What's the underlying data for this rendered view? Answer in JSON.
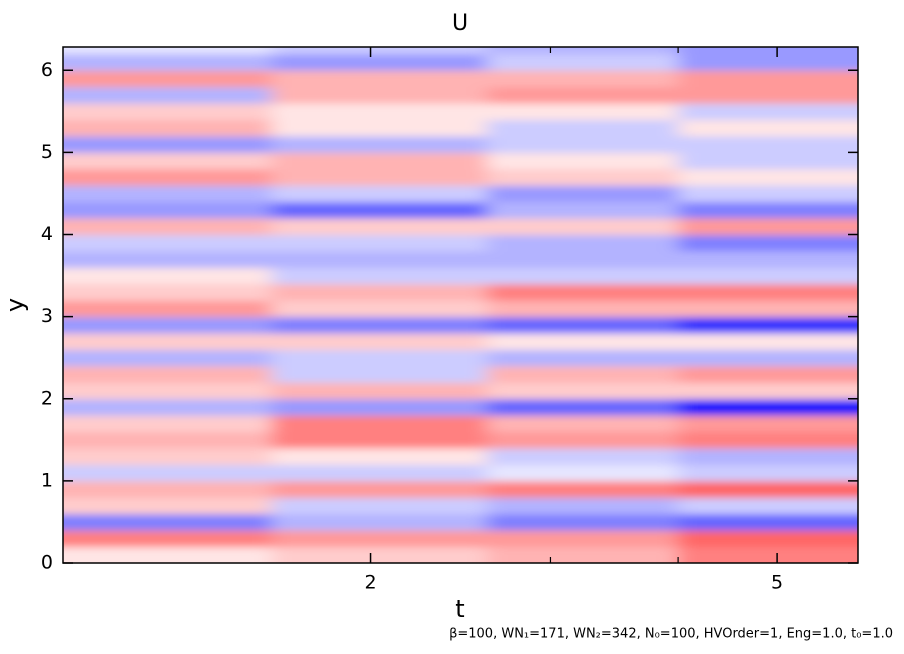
{
  "chart_data": {
    "type": "heatmap",
    "title": "U",
    "x_label": "t",
    "y_label": "y",
    "note": "β=100, WN₁=171, WN₂=342, N₀=100, HVOrder=1, Eng=1.0, t₀=1.0",
    "xscale": "log",
    "xlim": [
      1,
      6
    ],
    "xticks": [
      2,
      5
    ],
    "xminorticks": [
      3,
      4
    ],
    "ylim": [
      0,
      6.2832
    ],
    "yticks": [
      0,
      1,
      2,
      3,
      4,
      5,
      6
    ],
    "zlim": [
      -1,
      1
    ],
    "colormap": [
      "#0000ff",
      "#ffffff",
      "#ff0000"
    ],
    "xbins": [
      1,
      1.6,
      2.6,
      4,
      6
    ],
    "ybins": [
      0,
      0.2,
      0.4,
      0.6,
      0.8,
      1.0,
      1.2,
      1.4,
      1.6,
      1.8,
      2.0,
      2.2,
      2.4,
      2.6,
      2.8,
      3.0,
      3.2,
      3.4,
      3.6,
      3.8,
      4.0,
      4.2,
      4.4,
      4.6,
      4.8,
      5.0,
      5.2,
      5.4,
      5.6,
      5.8,
      6.0,
      6.2,
      6.2832
    ],
    "values": [
      [
        0.1,
        0.2,
        0.3,
        0.5
      ],
      [
        0.5,
        0.4,
        0.4,
        0.6
      ],
      [
        -0.5,
        -0.3,
        -0.5,
        -0.6
      ],
      [
        0.2,
        -0.2,
        -0.3,
        -0.2
      ],
      [
        0.3,
        0.4,
        0.5,
        0.6
      ],
      [
        -0.2,
        -0.2,
        -0.1,
        -0.2
      ],
      [
        0.2,
        0.1,
        -0.2,
        -0.3
      ],
      [
        0.3,
        0.5,
        0.4,
        0.5
      ],
      [
        0.2,
        0.5,
        0.3,
        0.4
      ],
      [
        -0.3,
        -0.4,
        -0.6,
        -0.9
      ],
      [
        0.2,
        0.3,
        0.2,
        0.2
      ],
      [
        0.3,
        -0.2,
        0.3,
        0.4
      ],
      [
        -0.3,
        -0.2,
        -0.3,
        -0.3
      ],
      [
        0.2,
        0.2,
        0.1,
        0.1
      ],
      [
        -0.4,
        -0.5,
        -0.6,
        -0.8
      ],
      [
        0.4,
        0.2,
        0.3,
        0.3
      ],
      [
        0.2,
        0.3,
        0.5,
        0.5
      ],
      [
        0.1,
        -0.2,
        -0.2,
        -0.2
      ],
      [
        -0.3,
        -0.3,
        -0.3,
        -0.3
      ],
      [
        -0.2,
        -0.2,
        -0.3,
        -0.5
      ],
      [
        0.3,
        0.2,
        0.2,
        0.4
      ],
      [
        -0.4,
        -0.6,
        -0.3,
        -0.5
      ],
      [
        -0.3,
        -0.2,
        -0.4,
        -0.2
      ],
      [
        0.4,
        0.3,
        0.2,
        0.1
      ],
      [
        0.2,
        0.3,
        0.1,
        -0.2
      ],
      [
        -0.4,
        -0.3,
        -0.2,
        -0.2
      ],
      [
        0.3,
        0.1,
        -0.2,
        0.1
      ],
      [
        0.2,
        0.1,
        0.1,
        -0.2
      ],
      [
        -0.3,
        0.3,
        0.4,
        0.4
      ],
      [
        0.4,
        0.3,
        0.3,
        0.4
      ],
      [
        -0.3,
        -0.4,
        -0.2,
        -0.4
      ],
      [
        -0.1,
        -0.2,
        -0.3,
        -0.4
      ]
    ]
  }
}
